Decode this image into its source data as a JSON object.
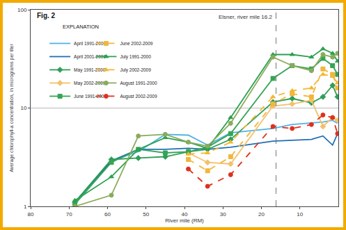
{
  "chart_data": {
    "type": "line",
    "title": "Fig. 2",
    "legend_title": "EXPLANATION",
    "x_label": "River mile (RM)",
    "y_label": "Average chlorophyll-a concentration, in micrograms per liter",
    "x": [
      68.5,
      59,
      52,
      45,
      39,
      34,
      28,
      17,
      12,
      7,
      4,
      1.5,
      0.2
    ],
    "xlim": [
      80,
      0
    ],
    "xticks": [
      80,
      70,
      60,
      50,
      40,
      30,
      20,
      10
    ],
    "ylim": [
      1,
      100
    ],
    "yticks": [
      1,
      10,
      100
    ],
    "log": "y",
    "grid": true,
    "legend": "upper left",
    "reference_line": {
      "x": 16.2,
      "label": "Elsner, river mile 16.2"
    },
    "series": [
      {
        "name": "April 1991-2000",
        "color": "#4db3e6",
        "marker": "none",
        "line_style": "solid",
        "values": [
          1.1,
          2.9,
          3.6,
          5.4,
          5.3,
          4.2,
          5.6,
          6.2,
          6.8,
          7.0,
          7.2,
          7.5,
          7.0
        ]
      },
      {
        "name": "April 2001-2009",
        "color": "#1f6fb4",
        "marker": "none",
        "line_style": "solid",
        "values": [
          1.1,
          2.9,
          3.8,
          3.8,
          3.9,
          3.8,
          4.0,
          4.6,
          4.7,
          4.8,
          5.2,
          4.2,
          5.5
        ]
      },
      {
        "name": "May 1991-2000",
        "color": "#2e9e58",
        "marker": "diamond",
        "line_style": "solid",
        "values": [
          1.1,
          3.0,
          3.1,
          3.2,
          3.6,
          3.8,
          4.8,
          11.5,
          12.5,
          11.3,
          13,
          17,
          13
        ]
      },
      {
        "name": "May 2002-2009",
        "color": "#f3c16a",
        "marker": "diamond",
        "line_style": "solid",
        "values": [
          null,
          null,
          null,
          null,
          3.5,
          2.8,
          2.7,
          10.5,
          11,
          12,
          6.5,
          8,
          7.5
        ]
      },
      {
        "name": "June 1991-2000",
        "color": "#36a456",
        "marker": "square",
        "line_style": "solid",
        "values": [
          1.05,
          2.8,
          3.8,
          3.5,
          3.6,
          4.0,
          5.5,
          20,
          27,
          25,
          32,
          27,
          22
        ]
      },
      {
        "name": "June 2002-2009",
        "color": "#f2b63c",
        "marker": "square",
        "line_style": "dash",
        "values": [
          null,
          null,
          null,
          null,
          3.0,
          2.3,
          3.2,
          11,
          14,
          13,
          25,
          22,
          16
        ]
      },
      {
        "name": "July 1991-2000",
        "color": "#2aa150",
        "marker": "triangle-up",
        "line_style": "solid",
        "values": [
          1.15,
          2.0,
          3.8,
          5.0,
          4.5,
          3.9,
          8,
          35,
          35,
          33,
          40,
          36,
          30
        ]
      },
      {
        "name": "July 2002-2009",
        "color": "#f5b630",
        "marker": "triangle-up",
        "line_style": "dash",
        "values": [
          null,
          null,
          null,
          null,
          3.4,
          3.5,
          4.5,
          13,
          15,
          16,
          22,
          21,
          18
        ]
      },
      {
        "name": "August 1991-2000",
        "color": "#8aab5c",
        "marker": "circle",
        "line_style": "solid",
        "values": [
          1.0,
          1.3,
          5.2,
          5.4,
          4.5,
          4.1,
          7,
          33,
          27,
          24,
          35,
          33,
          36
        ]
      },
      {
        "name": "August 2002-2009",
        "color": "#e0301e",
        "marker": "circle",
        "line_style": "dash",
        "values": [
          null,
          null,
          null,
          null,
          2.4,
          1.6,
          2.1,
          6.5,
          6.2,
          6.8,
          8.5,
          8.0,
          5.5
        ]
      }
    ]
  }
}
